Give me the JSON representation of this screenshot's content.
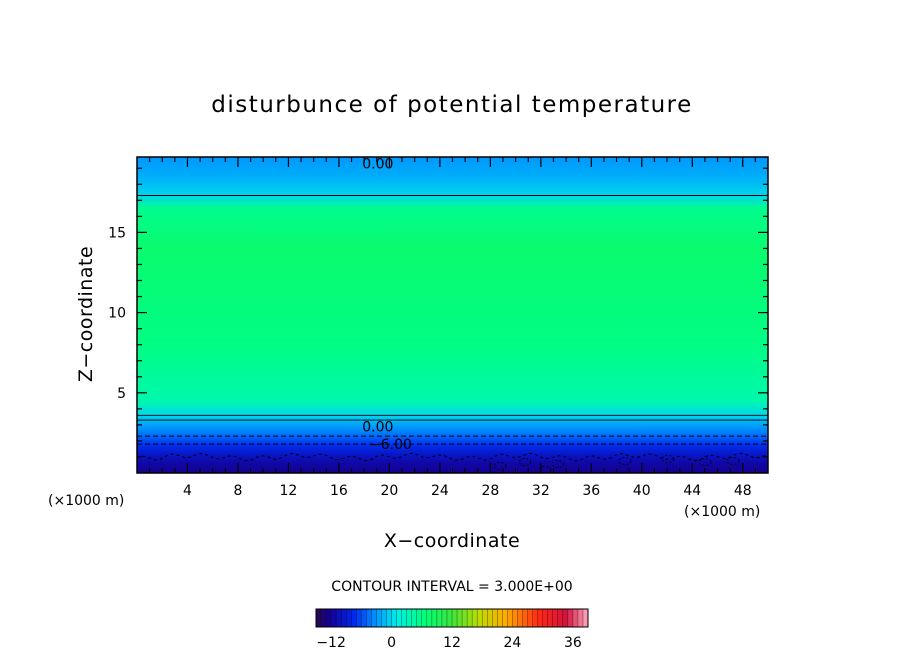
{
  "chart_data": {
    "type": "heatmap",
    "title": "disturbunce of potential temperature",
    "xlabel": "X−coordinate",
    "ylabel": "Z−coordinate",
    "x_unit_left": "(×1000 m)",
    "x_unit_right": "(×1000 m)",
    "xlim": [
      0,
      50
    ],
    "ylim": [
      0,
      19.7
    ],
    "x_ticks": [
      4,
      8,
      12,
      16,
      20,
      24,
      28,
      32,
      36,
      40,
      44,
      48
    ],
    "x_tick_labels": [
      "4",
      "8",
      "12",
      "16",
      "20",
      "24",
      "28",
      "32",
      "36",
      "40",
      "44",
      "48"
    ],
    "y_ticks": [
      5,
      10,
      15
    ],
    "y_tick_labels": [
      "5",
      "10",
      "15"
    ],
    "value_range": [
      -15,
      39
    ],
    "field_profile": [
      {
        "z": 0.0,
        "v": -12.5
      },
      {
        "z": 0.6,
        "v": -11.5
      },
      {
        "z": 1.2,
        "v": -9.5
      },
      {
        "z": 1.8,
        "v": -7.0
      },
      {
        "z": 2.4,
        "v": -4.5
      },
      {
        "z": 3.0,
        "v": -2.5
      },
      {
        "z": 3.6,
        "v": 0.0
      },
      {
        "z": 4.5,
        "v": 4.0
      },
      {
        "z": 8.0,
        "v": 6.0
      },
      {
        "z": 14.0,
        "v": 7.5
      },
      {
        "z": 16.5,
        "v": 5.5
      },
      {
        "z": 17.3,
        "v": 0.0
      },
      {
        "z": 18.5,
        "v": -2.0
      },
      {
        "z": 19.7,
        "v": -3.0
      }
    ],
    "contours": [
      {
        "z": 17.3,
        "value": 0.0,
        "style": "solid",
        "label": "0.00",
        "label_z": 19.3,
        "label_x": 17.5
      },
      {
        "z": 3.6,
        "value": 0.0,
        "style": "solid",
        "label": "0.00",
        "label_z": 2.9,
        "label_x": 17.5
      },
      {
        "z": 3.3,
        "value": 0.0,
        "style": "solid"
      },
      {
        "z": 2.3,
        "value": -3.0,
        "style": "dashed"
      },
      {
        "z": 1.8,
        "value": -6.0,
        "style": "dashed",
        "label": "−6.00",
        "label_z": 1.8,
        "label_x": 18.5
      },
      {
        "z": 1.0,
        "value": -9.0,
        "style": "dashed-wavy"
      }
    ],
    "contour_interval_text": "CONTOUR INTERVAL = 3.000E+00",
    "colorbar": {
      "range": [
        -15,
        39
      ],
      "tick_values": [
        -12,
        0,
        12,
        24,
        36
      ],
      "tick_labels": [
        "−12",
        "0",
        "12",
        "24",
        "36"
      ]
    },
    "grid": false
  }
}
